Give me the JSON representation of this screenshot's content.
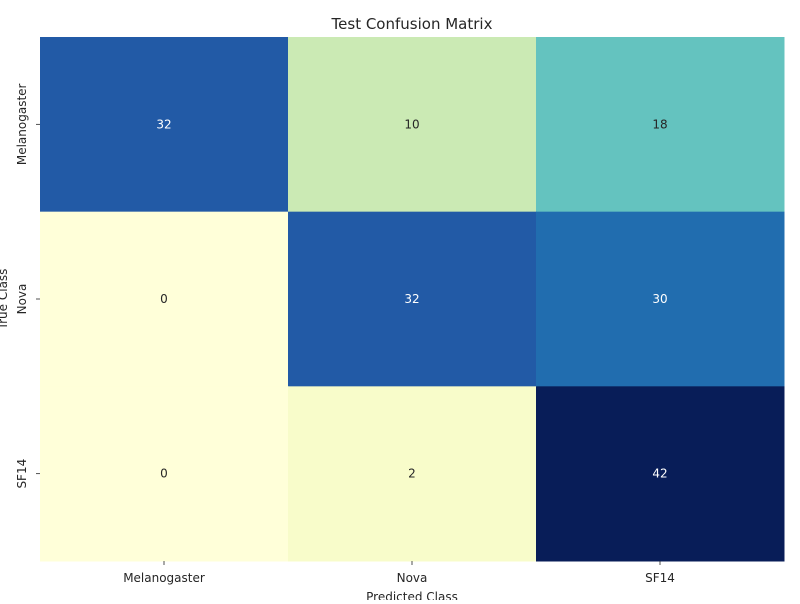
{
  "chart_data": {
    "type": "heatmap",
    "title": "Test Confusion Matrix",
    "xlabel": "Predicted Class",
    "ylabel": "True Class",
    "x_categories": [
      "Melanogaster",
      "Nova",
      "SF14"
    ],
    "y_categories": [
      "Melanogaster",
      "Nova",
      "SF14"
    ],
    "values": [
      [
        32,
        10,
        18
      ],
      [
        0,
        32,
        30
      ],
      [
        0,
        2,
        42
      ]
    ],
    "colormap": "YlGnBu",
    "value_range": [
      0,
      42
    ],
    "annotations": true,
    "colorbar": false
  }
}
